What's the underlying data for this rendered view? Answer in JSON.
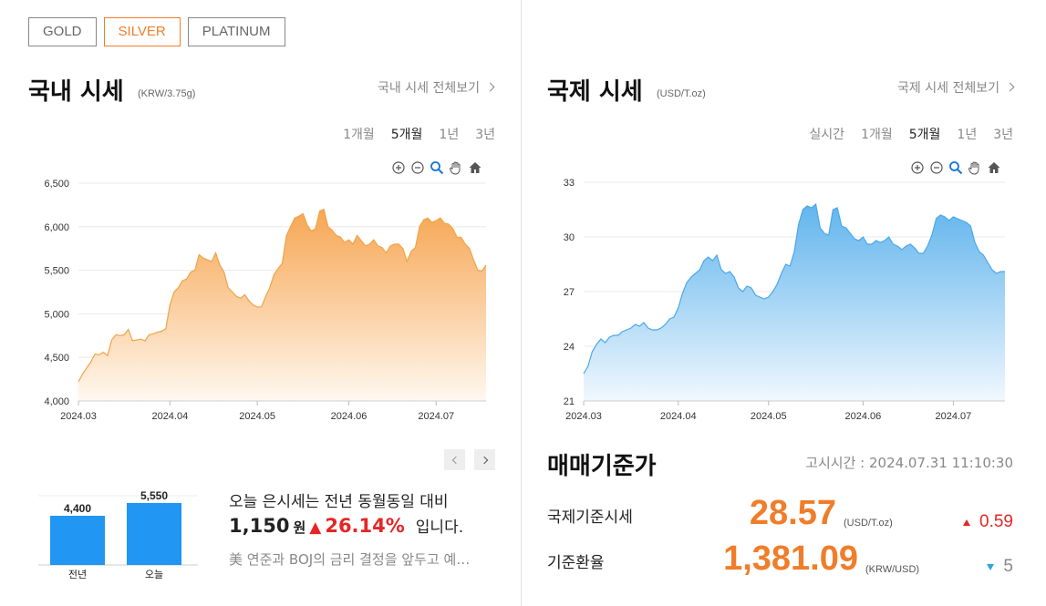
{
  "metal_tabs": [
    {
      "label": "GOLD",
      "active": false
    },
    {
      "label": "SILVER",
      "active": true
    },
    {
      "label": "PLATINUM",
      "active": false
    }
  ],
  "domestic": {
    "title": "국내 시세",
    "unit": "(KRW/3.75g)",
    "view_all": "국내 시세 전체보기",
    "periods": [
      "1개월",
      "5개월",
      "1년",
      "3년"
    ],
    "active_period": "5개월"
  },
  "international": {
    "title": "국제 시세",
    "unit": "(USD/T.oz)",
    "view_all": "국제 시세 전체보기",
    "periods": [
      "실시간",
      "1개월",
      "5개월",
      "1년",
      "3년"
    ],
    "active_period": "5개월"
  },
  "chart_tools": [
    "zoom-in-icon",
    "zoom-out-icon",
    "zoom-selection-icon",
    "pan-hand-icon",
    "home-reset-icon"
  ],
  "comparison": {
    "last_year_value": "4,400",
    "today_value": "5,550",
    "last_year_label": "전년",
    "today_label": "오늘",
    "summary_line1": "오늘 은시세는 전년 동월동일 대비",
    "diff_amount": "1,150",
    "diff_unit": "원",
    "up_arrow": "▲",
    "diff_percent": "26.14%",
    "tail": "입니다.",
    "news": "美 연준과 BOJ의 금리 결정을 앞두고 예…"
  },
  "base_rate": {
    "title": "매매기준가",
    "notice_time": "고시시간 : 2024.07.31 11:10:30",
    "rows": [
      {
        "label": "국제기준시세",
        "value": "28.57",
        "unit": "(USD/T.oz)",
        "change": "0.59",
        "direction": "up"
      },
      {
        "label": "기준환율",
        "value": "1,381.09",
        "unit": "(KRW/USD)",
        "change": "5",
        "direction": "down"
      }
    ]
  },
  "colors": {
    "accent": "#f07d2a",
    "up": "#e52626",
    "down": "#2ca4e0",
    "bar": "#2196f3",
    "domestic_line": "#f0a347",
    "international_line": "#4aa8e8"
  },
  "chart_data": [
    {
      "type": "area",
      "name": "domestic-silver-price",
      "ylim": [
        4000,
        6500
      ],
      "y_ticks": [
        "4,000",
        "4,500",
        "5,000",
        "5,500",
        "6,000",
        "6,500"
      ],
      "y_tick_values": [
        4000,
        4500,
        5000,
        5500,
        6000,
        6500
      ],
      "x_ticks": [
        "2024.03",
        "2024.04",
        "2024.05",
        "2024.06",
        "2024.07"
      ],
      "x_tick_index": [
        0,
        22,
        43,
        65,
        86
      ],
      "values": [
        4220,
        4310,
        4380,
        4450,
        4540,
        4530,
        4560,
        4520,
        4700,
        4760,
        4750,
        4760,
        4820,
        4690,
        4700,
        4710,
        4690,
        4760,
        4770,
        4790,
        4800,
        4830,
        5100,
        5250,
        5300,
        5380,
        5400,
        5480,
        5500,
        5680,
        5640,
        5620,
        5600,
        5700,
        5560,
        5480,
        5300,
        5250,
        5200,
        5180,
        5220,
        5150,
        5100,
        5080,
        5080,
        5200,
        5300,
        5450,
        5520,
        5580,
        5900,
        6000,
        6100,
        6120,
        6150,
        6020,
        5950,
        5980,
        6180,
        6200,
        6000,
        5960,
        5900,
        5880,
        5820,
        5850,
        5800,
        5900,
        5840,
        5780,
        5800,
        5850,
        5780,
        5760,
        5700,
        5780,
        5800,
        5800,
        5750,
        5600,
        5720,
        5760,
        6000,
        6080,
        6100,
        6050,
        6070,
        6100,
        6040,
        6030,
        5980,
        5880,
        5880,
        5800,
        5750,
        5620,
        5500,
        5490,
        5560
      ],
      "fill_top": "#f6a24b",
      "fill_bottom": "#fff8f0"
    },
    {
      "type": "area",
      "name": "international-silver-price",
      "ylim": [
        21,
        33
      ],
      "y_ticks": [
        "21",
        "24",
        "27",
        "30",
        "33"
      ],
      "y_tick_values": [
        21,
        24,
        27,
        30,
        33
      ],
      "x_ticks": [
        "2024.03",
        "2024.04",
        "2024.05",
        "2024.06",
        "2024.07"
      ],
      "x_tick_index": [
        0,
        22,
        43,
        65,
        86
      ],
      "values": [
        22.5,
        22.9,
        23.7,
        24.1,
        24.4,
        24.2,
        24.5,
        24.6,
        24.6,
        24.8,
        24.9,
        25.0,
        25.2,
        25.1,
        25.3,
        25.0,
        24.9,
        24.9,
        25.0,
        25.2,
        25.5,
        25.6,
        26.1,
        26.9,
        27.5,
        27.8,
        28.0,
        28.2,
        28.7,
        28.9,
        28.7,
        29.0,
        28.2,
        28.0,
        28.1,
        27.8,
        27.2,
        27.0,
        27.3,
        27.2,
        26.8,
        26.7,
        26.6,
        26.7,
        27.0,
        27.4,
        28.0,
        28.5,
        28.4,
        29.2,
        30.7,
        31.5,
        31.7,
        31.6,
        31.8,
        30.5,
        30.2,
        30.1,
        31.5,
        31.6,
        30.6,
        30.5,
        30.2,
        29.9,
        29.8,
        30.0,
        29.6,
        29.6,
        29.8,
        29.7,
        29.8,
        30.0,
        29.6,
        29.5,
        29.3,
        29.5,
        29.6,
        29.4,
        29.1,
        29.1,
        29.5,
        30.1,
        31.0,
        31.2,
        31.1,
        30.9,
        31.1,
        31.0,
        30.9,
        30.8,
        30.6,
        29.7,
        29.2,
        29.0,
        28.6,
        28.2,
        28.0,
        28.1,
        28.1
      ],
      "fill_top": "#5ab1ec",
      "fill_bottom": "#f1f8fe"
    }
  ]
}
